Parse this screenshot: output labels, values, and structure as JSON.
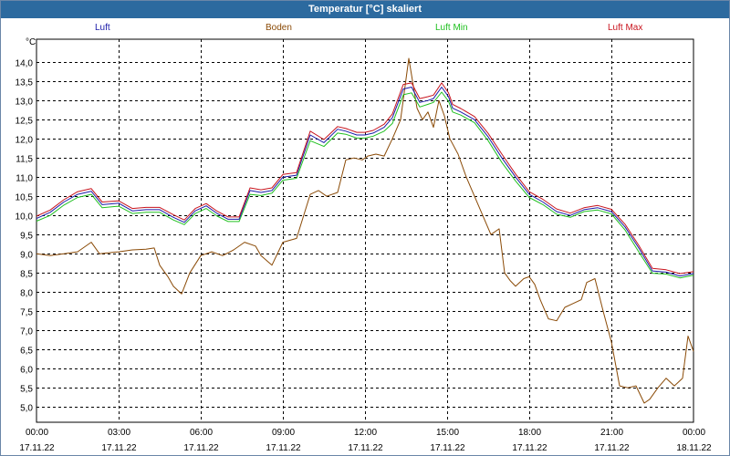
{
  "window": {
    "title": "Temperatur [°C] skaliert"
  },
  "chart_data": {
    "type": "line",
    "title": "Temperatur [°C] skaliert",
    "ylabel": "°C",
    "xlabel": "",
    "ylim": [
      4.6,
      14.6
    ],
    "xlim": [
      0,
      24
    ],
    "grid": true,
    "y_ticks": [
      5.0,
      5.5,
      6.0,
      6.5,
      7.0,
      7.5,
      8.0,
      8.5,
      9.0,
      9.5,
      10.0,
      10.5,
      11.0,
      11.5,
      12.0,
      12.5,
      13.0,
      13.5,
      14.0
    ],
    "y_tick_labels": [
      "5,0",
      "5,5",
      "6,0",
      "6,5",
      "7,0",
      "7,5",
      "8,0",
      "8,5",
      "9,0",
      "9,5",
      "10,0",
      "10,5",
      "11,0",
      "11,5",
      "12,0",
      "12,5",
      "13,0",
      "13,5",
      "14,0"
    ],
    "x_ticks": [
      {
        "h": 0,
        "time": "00:00",
        "date": "17.11.22"
      },
      {
        "h": 3,
        "time": "03:00",
        "date": "17.11.22"
      },
      {
        "h": 6,
        "time": "06:00",
        "date": "17.11.22"
      },
      {
        "h": 9,
        "time": "09:00",
        "date": "17.11.22"
      },
      {
        "h": 12,
        "time": "12:00",
        "date": "17.11.22"
      },
      {
        "h": 15,
        "time": "15:00",
        "date": "17.11.22"
      },
      {
        "h": 18,
        "time": "18:00",
        "date": "17.11.22"
      },
      {
        "h": 21,
        "time": "21:00",
        "date": "17.11.22"
      },
      {
        "h": 24,
        "time": "00:00",
        "date": "18.11.22"
      }
    ],
    "series": [
      {
        "name": "Luft",
        "color": "#1a1aa8",
        "x": [
          0,
          0.5,
          1,
          1.5,
          2,
          2.4,
          3,
          3.5,
          4,
          4.5,
          5,
          5.4,
          5.8,
          6.2,
          6.6,
          7,
          7.4,
          7.8,
          8.2,
          8.6,
          9,
          9.5,
          10,
          10.5,
          11,
          11.3,
          11.7,
          12,
          12.3,
          12.7,
          13,
          13.4,
          13.7,
          14,
          14.3,
          14.5,
          14.8,
          15.05,
          15.2,
          15.5,
          16,
          16.5,
          17,
          17.5,
          18,
          18.5,
          19,
          19.5,
          20,
          20.5,
          21,
          21.5,
          22,
          22.5,
          23,
          23.5,
          24
        ],
        "values": [
          9.92,
          10.08,
          10.35,
          10.55,
          10.63,
          10.28,
          10.32,
          10.12,
          10.15,
          10.15,
          9.95,
          9.82,
          10.12,
          10.25,
          10.05,
          9.9,
          9.9,
          10.65,
          10.6,
          10.65,
          11.0,
          11.05,
          12.1,
          11.9,
          12.25,
          12.2,
          12.1,
          12.1,
          12.15,
          12.3,
          12.55,
          13.3,
          13.35,
          12.95,
          13.0,
          13.05,
          13.35,
          13.1,
          12.8,
          12.7,
          12.5,
          12.05,
          11.5,
          11.0,
          10.55,
          10.35,
          10.1,
          10.0,
          10.15,
          10.2,
          10.1,
          9.7,
          9.15,
          8.55,
          8.52,
          8.42,
          8.48
        ]
      },
      {
        "name": "Boden",
        "color": "#8a4a06",
        "x": [
          0,
          0.5,
          1,
          1.5,
          2,
          2.3,
          3,
          3.5,
          4,
          4.3,
          4.5,
          4.8,
          5,
          5.3,
          5.6,
          6,
          6.4,
          6.8,
          7.2,
          7.6,
          8,
          8.2,
          8.6,
          9,
          9.5,
          10,
          10.3,
          10.6,
          11,
          11.3,
          11.6,
          11.9,
          12.1,
          12.4,
          12.7,
          13,
          13.3,
          13.6,
          13.9,
          14.1,
          14.3,
          14.5,
          14.7,
          14.9,
          15.1,
          15.4,
          15.7,
          16,
          16.3,
          16.6,
          16.9,
          17.1,
          17.3,
          17.5,
          17.8,
          18,
          18.2,
          18.4,
          18.7,
          19,
          19.3,
          19.6,
          19.9,
          20.1,
          20.4,
          20.7,
          21,
          21.3,
          21.6,
          21.9,
          22.2,
          22.4,
          22.7,
          23,
          23.3,
          23.6,
          23.8,
          24
        ],
        "values": [
          9.0,
          8.95,
          9.0,
          9.05,
          9.3,
          9.0,
          9.05,
          9.1,
          9.12,
          9.15,
          8.7,
          8.4,
          8.15,
          7.95,
          8.5,
          8.95,
          9.05,
          8.95,
          9.1,
          9.3,
          9.2,
          8.95,
          8.7,
          9.3,
          9.4,
          10.55,
          10.65,
          10.5,
          10.6,
          11.45,
          11.5,
          11.45,
          11.55,
          11.6,
          11.55,
          12.0,
          12.5,
          14.1,
          12.8,
          12.5,
          12.7,
          12.3,
          13.0,
          12.6,
          12.0,
          11.6,
          11.0,
          10.5,
          10.0,
          9.5,
          9.65,
          8.5,
          8.3,
          8.15,
          8.35,
          8.4,
          8.2,
          7.8,
          7.3,
          7.25,
          7.6,
          7.7,
          7.8,
          8.25,
          8.35,
          7.5,
          6.7,
          5.55,
          5.5,
          5.55,
          5.1,
          5.2,
          5.5,
          5.75,
          5.55,
          5.75,
          6.85,
          6.45
        ]
      },
      {
        "name": "Luft Min",
        "color": "#20c020",
        "x": [
          0,
          0.5,
          1,
          1.5,
          2,
          2.4,
          3,
          3.5,
          4,
          4.5,
          5,
          5.4,
          5.8,
          6.2,
          6.6,
          7,
          7.4,
          7.8,
          8.2,
          8.6,
          9,
          9.5,
          10,
          10.5,
          11,
          11.3,
          11.7,
          12,
          12.3,
          12.7,
          13,
          13.4,
          13.7,
          14,
          14.3,
          14.5,
          14.8,
          15.05,
          15.2,
          15.5,
          16,
          16.5,
          17,
          17.5,
          18,
          18.5,
          19,
          19.5,
          20,
          20.5,
          21,
          21.5,
          22,
          22.5,
          23,
          23.5,
          24
        ],
        "values": [
          9.85,
          10.0,
          10.27,
          10.47,
          10.55,
          10.2,
          10.24,
          10.05,
          10.08,
          10.08,
          9.88,
          9.76,
          10.05,
          10.18,
          9.98,
          9.84,
          9.84,
          10.55,
          10.52,
          10.58,
          10.92,
          10.97,
          11.95,
          11.8,
          12.15,
          12.12,
          12.02,
          12.02,
          12.07,
          12.2,
          12.4,
          13.15,
          13.2,
          12.83,
          12.9,
          12.95,
          13.22,
          12.98,
          12.7,
          12.62,
          12.42,
          11.95,
          11.38,
          10.9,
          10.47,
          10.28,
          10.03,
          9.95,
          10.1,
          10.14,
          10.04,
          9.62,
          9.05,
          8.49,
          8.47,
          8.37,
          8.44
        ]
      },
      {
        "name": "Luft Max",
        "color": "#c8141e",
        "x": [
          0,
          0.5,
          1,
          1.5,
          2,
          2.4,
          3,
          3.5,
          4,
          4.5,
          5,
          5.4,
          5.8,
          6.2,
          6.6,
          7,
          7.4,
          7.8,
          8.2,
          8.6,
          9,
          9.5,
          10,
          10.5,
          11,
          11.3,
          11.7,
          12,
          12.3,
          12.7,
          13,
          13.4,
          13.7,
          14,
          14.3,
          14.5,
          14.8,
          15.05,
          15.2,
          15.5,
          16,
          16.5,
          17,
          17.5,
          18,
          18.5,
          19,
          19.5,
          20,
          20.5,
          21,
          21.5,
          22,
          22.5,
          23,
          23.5,
          24
        ],
        "values": [
          9.98,
          10.14,
          10.41,
          10.62,
          10.7,
          10.35,
          10.38,
          10.18,
          10.21,
          10.21,
          10.02,
          9.88,
          10.18,
          10.31,
          10.11,
          9.96,
          9.96,
          10.72,
          10.67,
          10.72,
          11.07,
          11.12,
          12.2,
          11.98,
          12.32,
          12.27,
          12.17,
          12.17,
          12.22,
          12.38,
          12.65,
          13.42,
          13.46,
          13.05,
          13.1,
          13.14,
          13.46,
          13.2,
          12.9,
          12.79,
          12.58,
          12.14,
          11.6,
          11.08,
          10.62,
          10.42,
          10.17,
          10.06,
          10.2,
          10.26,
          10.16,
          9.77,
          9.22,
          8.62,
          8.58,
          8.48,
          8.53
        ]
      }
    ]
  }
}
